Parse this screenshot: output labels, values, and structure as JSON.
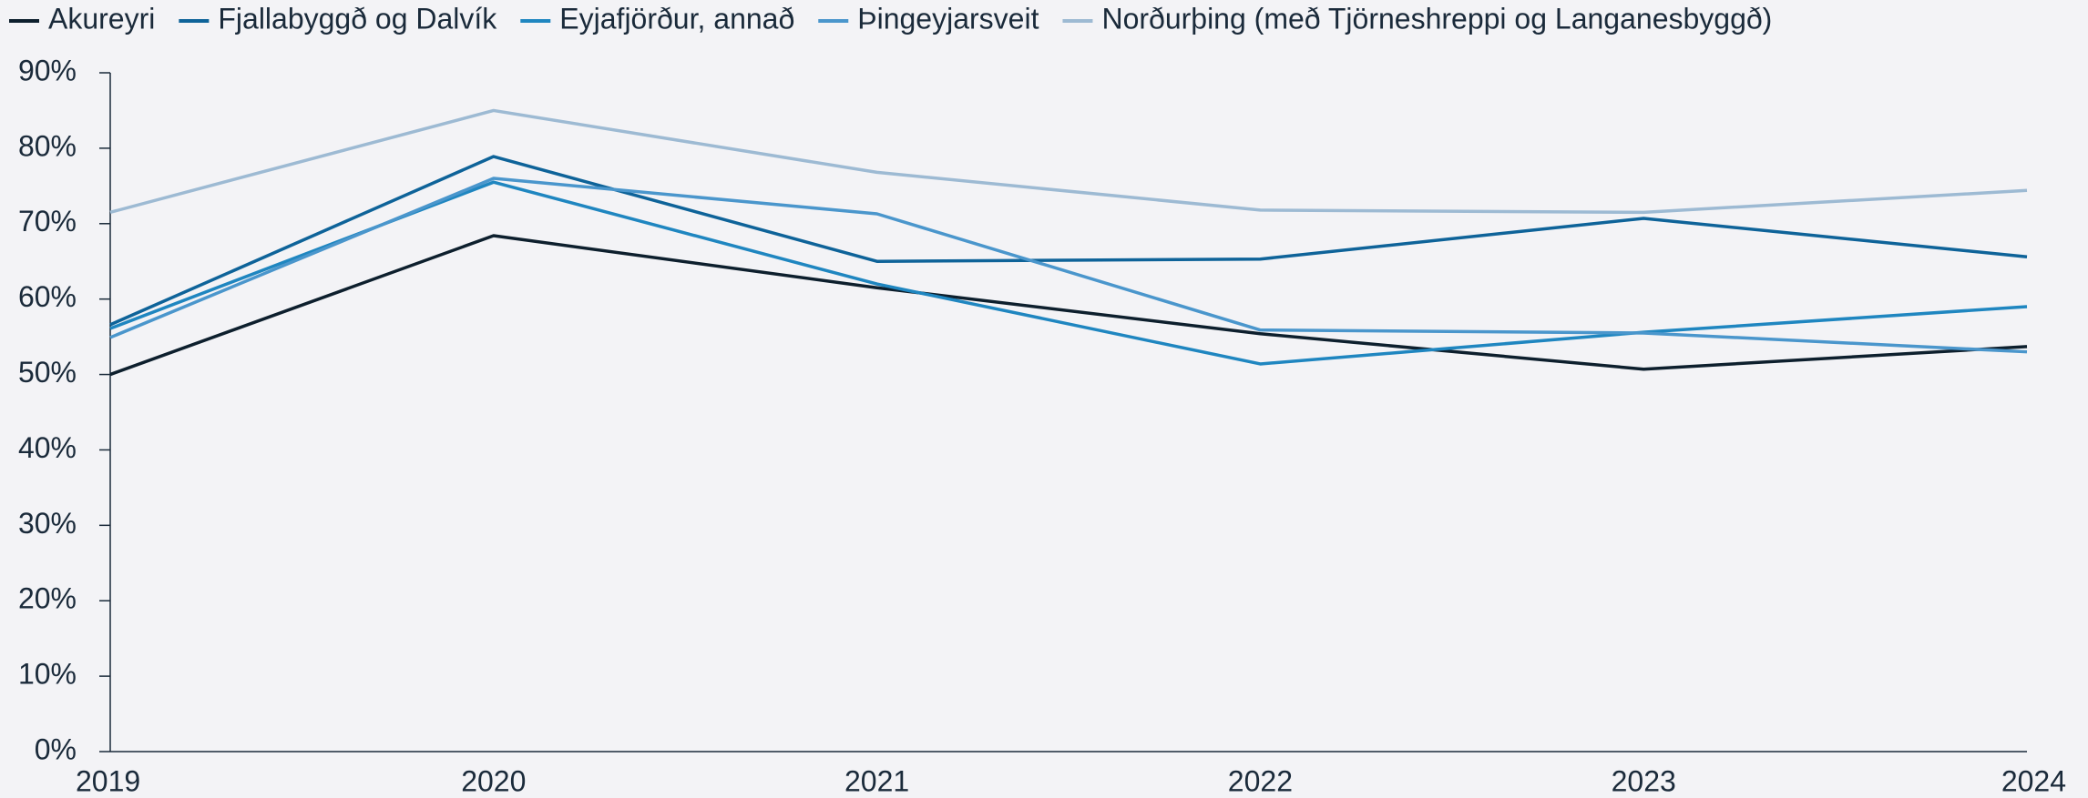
{
  "chart_data": {
    "type": "line",
    "categories": [
      "2019",
      "2020",
      "2021",
      "2022",
      "2023",
      "2024"
    ],
    "series": [
      {
        "name": "Akureyri",
        "color": "#0d1f2d",
        "values": [
          50.0,
          68.4,
          61.5,
          55.4,
          50.7,
          53.7
        ]
      },
      {
        "name": "Fjallabyggð og Dalvík",
        "color": "#0e6399",
        "values": [
          56.6,
          78.9,
          65.0,
          65.3,
          70.7,
          65.6
        ]
      },
      {
        "name": "Eyjafjörður, annað",
        "color": "#1f86c0",
        "values": [
          56.1,
          75.5,
          62.0,
          51.4,
          55.6,
          59.0
        ]
      },
      {
        "name": "Þingeyjarsveit",
        "color": "#4a96cc",
        "values": [
          54.9,
          76.0,
          71.3,
          55.9,
          55.5,
          53.0
        ]
      },
      {
        "name": "Norðurþing (með Tjörneshreppi og Langanesbyggð)",
        "color": "#9dbad3",
        "values": [
          71.5,
          85.0,
          76.8,
          71.8,
          71.5,
          74.4
        ]
      }
    ],
    "ylim": [
      0,
      90
    ],
    "yticks": [
      {
        "value": 0,
        "label": "0%"
      },
      {
        "value": 10,
        "label": "10%"
      },
      {
        "value": 20,
        "label": "20%"
      },
      {
        "value": 30,
        "label": "30%"
      },
      {
        "value": 40,
        "label": "40%"
      },
      {
        "value": 50,
        "label": "50%"
      },
      {
        "value": 60,
        "label": "60%"
      },
      {
        "value": 70,
        "label": "70%"
      },
      {
        "value": 80,
        "label": "80%"
      },
      {
        "value": 90,
        "label": "90%"
      }
    ],
    "legend": "top"
  }
}
